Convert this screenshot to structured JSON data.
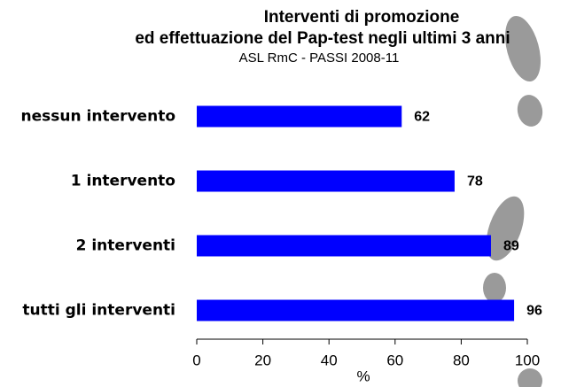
{
  "chart_data": {
    "type": "bar",
    "orientation": "horizontal",
    "title": [
      "Interventi di promozione",
      "ed effettuazione del Pap-test negli ultimi 3 anni"
    ],
    "subtitle": "ASL RmC - PASSI 2008-11",
    "categories": [
      "nessun intervento",
      "1 intervento",
      "2 interventi",
      "tutti gli interventi"
    ],
    "values": [
      62,
      78,
      89,
      96
    ],
    "color": "#0000ff",
    "xlabel": "%",
    "xlim": [
      0,
      100
    ],
    "xticks": [
      0,
      20,
      40,
      60,
      80,
      100
    ]
  }
}
